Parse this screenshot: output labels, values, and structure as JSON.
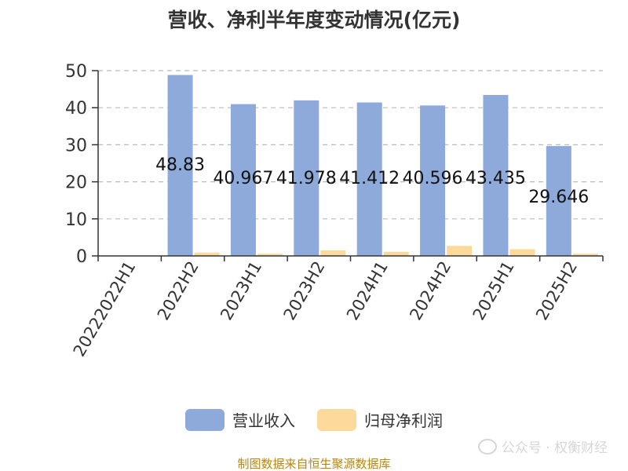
{
  "chart_data": {
    "type": "bar",
    "title": "营收、净利半年度变动情况(亿元)",
    "categories": [
      "20222022H1",
      "2022H2",
      "2023H1",
      "2023H2",
      "2024H1",
      "2024H2",
      "2025H1",
      "2025H2"
    ],
    "series": [
      {
        "name": "营业收入",
        "color": "#8eaadb",
        "values": [
          null,
          48.83,
          40.967,
          41.978,
          41.412,
          40.596,
          43.435,
          29.646
        ],
        "labels": [
          "",
          "48.83",
          "40.967",
          "41.978",
          "41.412",
          "40.596",
          "43.435",
          "29.646"
        ]
      },
      {
        "name": "归母净利润",
        "color": "#fdd99b",
        "values": [
          null,
          0.9,
          0.6,
          1.5,
          1.1,
          2.7,
          1.8,
          0.6
        ]
      }
    ],
    "ylim": [
      0,
      50
    ],
    "yticks": [
      0,
      10,
      20,
      30,
      40,
      50
    ],
    "grid": true,
    "legend_position": "bottom"
  },
  "legend": {
    "revenue_label": "营业收入",
    "profit_label": "归母净利润"
  },
  "source_note": "制图数据来自恒生聚源数据库",
  "watermark": "公众号 · 权衡财经"
}
